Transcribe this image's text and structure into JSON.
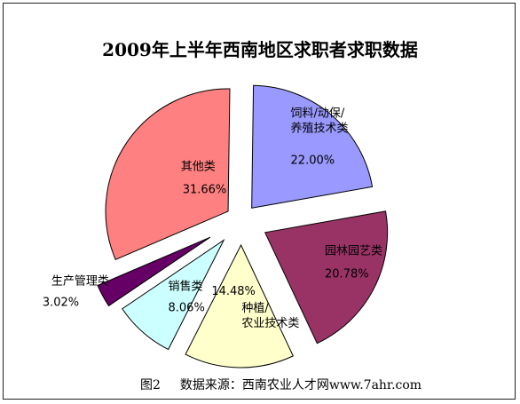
{
  "chart_data": {
    "type": "pie",
    "title": "2009年上半年西南地区求职者求职数据",
    "exploded": true,
    "slices": [
      {
        "name": "饲料/动保/\n养殖技术类",
        "value": 22.0,
        "label": "22.00%",
        "color": "#9999ff"
      },
      {
        "name": "园林园艺类",
        "value": 20.78,
        "label": "20.78%",
        "color": "#993366"
      },
      {
        "name": "种植/\n农业技术类",
        "value": 14.48,
        "label": "14.48%",
        "color": "#ffffcc"
      },
      {
        "name": "销售类",
        "value": 8.06,
        "label": "8.06%",
        "color": "#ccffff"
      },
      {
        "name": "生产管理类",
        "value": 3.02,
        "label": "3.02%",
        "color": "#660066"
      },
      {
        "name": "其他类",
        "value": 31.66,
        "label": "31.66%",
        "color": "#ff8080"
      }
    ]
  },
  "footer": {
    "figure": "图2",
    "source": "数据来源：西南农业人才网www.7ahr.com"
  }
}
